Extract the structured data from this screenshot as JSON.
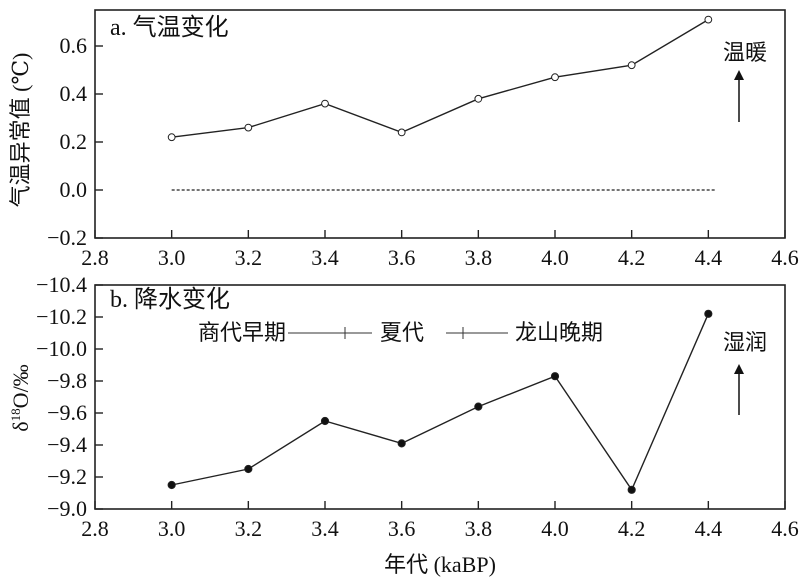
{
  "chart_data": [
    {
      "type": "line",
      "title": "a. 气温变化",
      "ylabel": "气温异常值 (℃)",
      "xlabel": "",
      "xlim": [
        2.8,
        4.6
      ],
      "ylim": [
        -0.2,
        0.75
      ],
      "x_ticks": [
        "2.8",
        "3.0",
        "3.2",
        "3.4",
        "3.6",
        "3.8",
        "4.0",
        "4.2",
        "4.4",
        "4.6"
      ],
      "y_ticks": [
        "0.6",
        "0.4",
        "0.2",
        "0.0",
        "−0.2"
      ],
      "y_tick_values": [
        0.6,
        0.4,
        0.2,
        0.0,
        -0.2
      ],
      "series": [
        {
          "x": [
            3.0,
            3.2,
            3.4,
            3.6,
            3.8,
            4.0,
            4.2,
            4.4
          ],
          "values": [
            0.22,
            0.26,
            0.36,
            0.24,
            0.38,
            0.47,
            0.52,
            0.71
          ],
          "marker": "open-circle",
          "color": "#222222"
        }
      ],
      "reference_line": {
        "y": 0.0,
        "style": "dashed"
      },
      "annotation": {
        "text": "温暖",
        "direction": "up"
      }
    },
    {
      "type": "line",
      "title": "b. 降水变化",
      "ylabel": "δ18O/‰",
      "xlabel": "年代 (kaBP)",
      "xlim": [
        2.8,
        4.6
      ],
      "ylim": [
        -9.0,
        -10.4
      ],
      "y_reversed": true,
      "x_ticks": [
        "2.8",
        "3.0",
        "3.2",
        "3.4",
        "3.6",
        "3.8",
        "4.0",
        "4.2",
        "4.4",
        "4.6"
      ],
      "y_ticks": [
        "−10.4",
        "−10.2",
        "−10.0",
        "−9.8",
        "−9.6",
        "−9.4",
        "−9.2",
        "−9.0"
      ],
      "y_tick_values": [
        -10.4,
        -10.2,
        -10.0,
        -9.8,
        -9.6,
        -9.4,
        -9.2,
        -9.0
      ],
      "series": [
        {
          "x": [
            3.0,
            3.2,
            3.4,
            3.6,
            3.8,
            4.0,
            4.2,
            4.4
          ],
          "values": [
            -9.15,
            -9.25,
            -9.55,
            -9.41,
            -9.64,
            -9.83,
            -9.12,
            -10.22
          ],
          "marker": "filled-circle",
          "color": "#222222"
        }
      ],
      "legend": [
        "商代早期",
        "夏代",
        "龙山晚期"
      ],
      "annotation": {
        "text": "湿润",
        "direction": "up"
      }
    }
  ]
}
